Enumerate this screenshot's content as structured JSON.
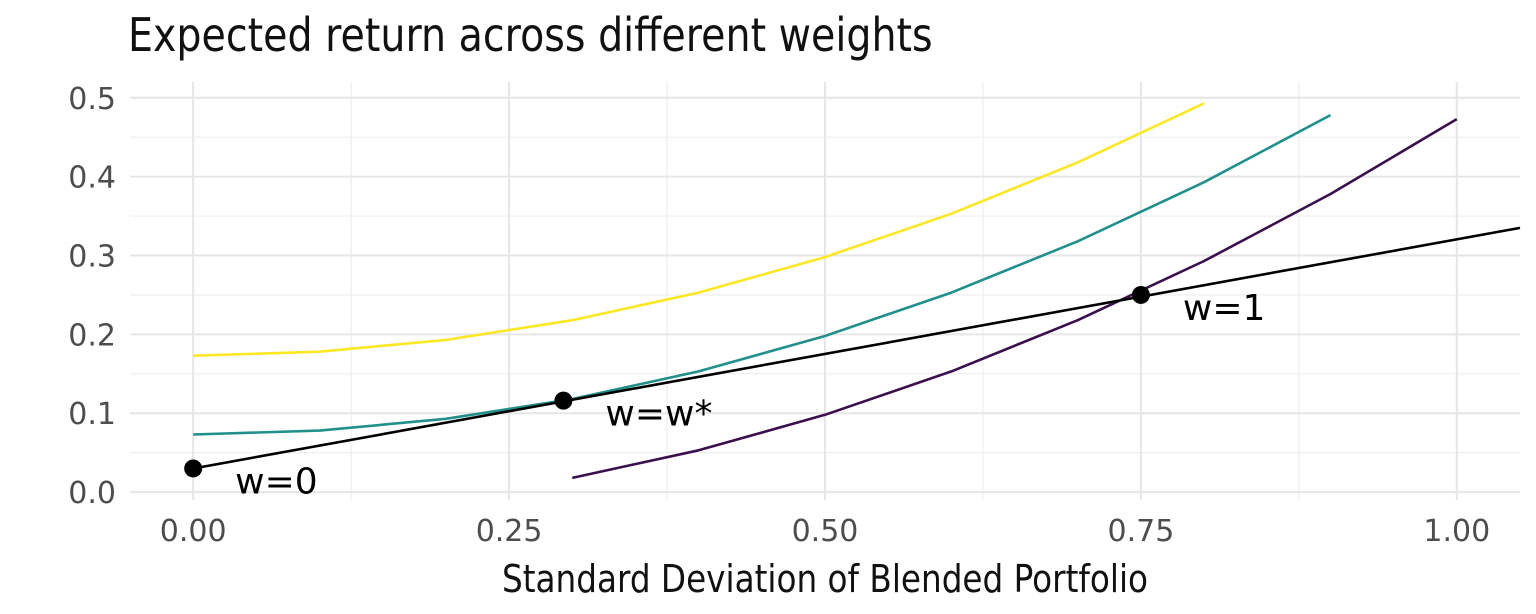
{
  "chart_data": {
    "type": "line",
    "title": "Expected return across different weights",
    "xlabel": "Standard Deviation of Blended Portfolio",
    "ylabel": "",
    "xlim": [
      -0.05,
      1.05
    ],
    "ylim": [
      -0.01,
      0.52
    ],
    "x_ticks": [
      0.0,
      0.25,
      0.5,
      0.75,
      1.0
    ],
    "x_tick_labels": [
      "0.00",
      "0.25",
      "0.50",
      "0.75",
      "1.00"
    ],
    "y_ticks": [
      0.0,
      0.1,
      0.2,
      0.3,
      0.4,
      0.5
    ],
    "y_tick_labels": [
      "0.0",
      "0.1",
      "0.2",
      "0.3",
      "0.4",
      "0.5"
    ],
    "grid": true,
    "legend": "none",
    "series": [
      {
        "color": "#FDE725",
        "x": [
          0.0,
          0.1,
          0.2,
          0.3,
          0.4,
          0.5,
          0.6,
          0.7,
          0.8
        ],
        "y": [
          0.173,
          0.178,
          0.193,
          0.218,
          0.253,
          0.298,
          0.353,
          0.418,
          0.493
        ]
      },
      {
        "color": "#21908C",
        "x": [
          0.0,
          0.1,
          0.2,
          0.3,
          0.4,
          0.5,
          0.6,
          0.7,
          0.8,
          0.9
        ],
        "y": [
          0.073,
          0.078,
          0.093,
          0.118,
          0.153,
          0.198,
          0.253,
          0.318,
          0.393,
          0.478
        ]
      },
      {
        "color": "#3B0F4E",
        "x": [
          0.3,
          0.4,
          0.5,
          0.6,
          0.7,
          0.8,
          0.9,
          1.0
        ],
        "y": [
          0.018,
          0.053,
          0.098,
          0.153,
          0.218,
          0.293,
          0.378,
          0.473
        ]
      },
      {
        "color": "#000000",
        "x": [
          0.0,
          1.05
        ],
        "y": [
          0.03,
          0.335
        ]
      }
    ],
    "points": [
      {
        "x": 0.0,
        "y": 0.03,
        "label": "w=0"
      },
      {
        "x": 0.293,
        "y": 0.116,
        "label": "w=w*"
      },
      {
        "x": 0.75,
        "y": 0.25,
        "label": "w=1"
      }
    ]
  }
}
